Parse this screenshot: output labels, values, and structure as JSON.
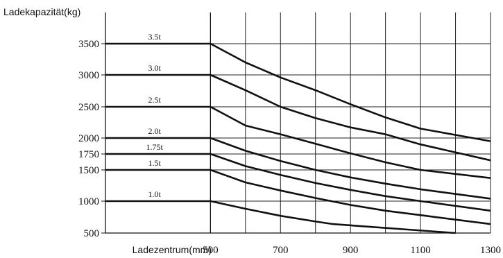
{
  "chart_data": {
    "type": "line",
    "ylabel": "Ladekapazität(kg)",
    "xlabel": "Ladezentrum(mm)",
    "xlim": [
      200,
      1300
    ],
    "ylim": [
      500,
      3900
    ],
    "x_ticks": [
      500,
      700,
      900,
      1100,
      1300
    ],
    "y_ticks": [
      500,
      1000,
      1500,
      1750,
      2000,
      2500,
      3000,
      3500
    ],
    "x_ticks_labels": [
      "500",
      "700",
      "900",
      "1100",
      "1300"
    ],
    "y_ticks_labels": [
      "500",
      "1000",
      "1500",
      "1750",
      "2000",
      "2500",
      "3000",
      "3500"
    ],
    "x_gridlines": [
      600,
      700,
      800,
      900,
      1000,
      1100,
      1200,
      1300
    ],
    "y_gridlines": [
      1000,
      1500,
      1750,
      2000,
      2500,
      3000,
      3500
    ],
    "grid": true,
    "series": [
      {
        "name": "3.5t",
        "x": [
          200,
          500,
          600,
          700,
          800,
          900,
          1000,
          1100,
          1300
        ],
        "y": [
          3500,
          3500,
          3200,
          2960,
          2760,
          2540,
          2330,
          2150,
          1950
        ]
      },
      {
        "name": "3.0t",
        "x": [
          200,
          500,
          600,
          700,
          800,
          900,
          1000,
          1100,
          1300
        ],
        "y": [
          3000,
          3000,
          2760,
          2500,
          2320,
          2170,
          2060,
          1900,
          1650
        ]
      },
      {
        "name": "2.5t",
        "x": [
          200,
          500,
          600,
          700,
          800,
          900,
          1000,
          1100,
          1300
        ],
        "y": [
          2500,
          2500,
          2200,
          2060,
          1910,
          1760,
          1620,
          1500,
          1370
        ]
      },
      {
        "name": "2.0t",
        "x": [
          200,
          500,
          600,
          700,
          800,
          900,
          1000,
          1100,
          1300
        ],
        "y": [
          2000,
          2000,
          1800,
          1640,
          1500,
          1380,
          1280,
          1190,
          1040
        ]
      },
      {
        "name": "1.75t",
        "x": [
          200,
          500,
          600,
          700,
          800,
          900,
          1000,
          1100,
          1300
        ],
        "y": [
          1750,
          1750,
          1560,
          1420,
          1290,
          1180,
          1080,
          1000,
          850
        ]
      },
      {
        "name": "1.5t",
        "x": [
          200,
          500,
          600,
          700,
          800,
          900,
          1000,
          1100,
          1300
        ],
        "y": [
          1500,
          1500,
          1300,
          1170,
          1050,
          940,
          850,
          780,
          640
        ]
      },
      {
        "name": "1.0t",
        "x": [
          200,
          500,
          600,
          700,
          800,
          850,
          950,
          1050,
          1200
        ],
        "y": [
          1000,
          1000,
          880,
          770,
          680,
          640,
          600,
          560,
          500
        ]
      }
    ]
  }
}
